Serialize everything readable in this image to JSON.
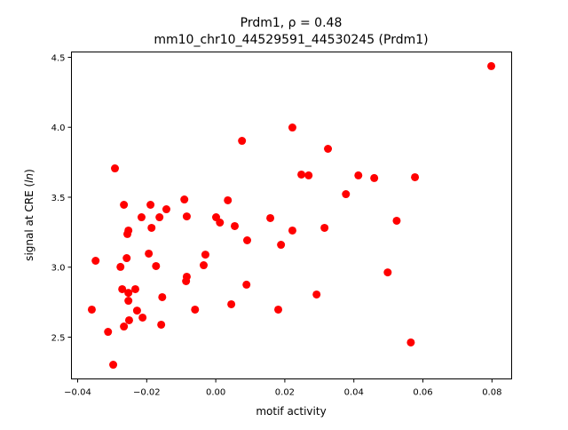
{
  "chart_data": {
    "type": "scatter",
    "title_line1": "Prdm1, ρ = 0.48",
    "title_line2": "mm10_chr10_44529591_44530245 (Prdm1)",
    "xlabel": "motif activity",
    "ylabel_prefix": "signal at CRE (",
    "ylabel_italic": "ln",
    "ylabel_suffix": ")",
    "xlim": [
      -0.0418,
      0.0857
    ],
    "ylim": [
      2.2016,
      4.538
    ],
    "xticks": [
      -0.04,
      -0.02,
      0.0,
      0.02,
      0.04,
      0.06,
      0.08
    ],
    "xtick_labels": [
      "−0.04",
      "−0.02",
      "0.00",
      "0.02",
      "0.04",
      "0.06",
      "0.08"
    ],
    "yticks": [
      2.5,
      3.0,
      3.5,
      4.0,
      4.5
    ],
    "ytick_labels": [
      "2.5",
      "3.0",
      "3.5",
      "4.0",
      "4.5"
    ],
    "grid": false,
    "marker_color": "#ff0000",
    "points": [
      [
        -0.0359,
        2.697
      ],
      [
        -0.0348,
        3.046
      ],
      [
        -0.0312,
        2.538
      ],
      [
        -0.0297,
        2.303
      ],
      [
        -0.0292,
        3.706
      ],
      [
        -0.0276,
        3.002
      ],
      [
        -0.0271,
        2.843
      ],
      [
        -0.0266,
        3.446
      ],
      [
        -0.0266,
        2.576
      ],
      [
        -0.0258,
        3.065
      ],
      [
        -0.0256,
        3.237
      ],
      [
        -0.0253,
        3.262
      ],
      [
        -0.0253,
        2.817
      ],
      [
        -0.0253,
        2.76
      ],
      [
        -0.0251,
        2.621
      ],
      [
        -0.0233,
        2.843
      ],
      [
        -0.0228,
        2.69
      ],
      [
        -0.0215,
        3.357
      ],
      [
        -0.0212,
        2.64
      ],
      [
        -0.0194,
        3.097
      ],
      [
        -0.0189,
        3.446
      ],
      [
        -0.0186,
        3.281
      ],
      [
        -0.0173,
        3.008
      ],
      [
        -0.0163,
        3.357
      ],
      [
        -0.0158,
        2.589
      ],
      [
        -0.0155,
        2.786
      ],
      [
        -0.0143,
        3.414
      ],
      [
        -0.0091,
        3.484
      ],
      [
        -0.0086,
        2.9
      ],
      [
        -0.0084,
        2.932
      ],
      [
        -0.0084,
        3.363
      ],
      [
        -0.006,
        2.697
      ],
      [
        -0.0035,
        3.014
      ],
      [
        -0.003,
        3.09
      ],
      [
        0.0001,
        3.357
      ],
      [
        0.0012,
        3.319
      ],
      [
        0.0035,
        3.478
      ],
      [
        0.0045,
        2.735
      ],
      [
        0.0055,
        3.294
      ],
      [
        0.0076,
        3.903
      ],
      [
        0.0091,
        3.192
      ],
      [
        0.0089,
        2.875
      ],
      [
        0.0158,
        3.351
      ],
      [
        0.0189,
        3.16
      ],
      [
        0.0181,
        2.697
      ],
      [
        0.0222,
        3.998
      ],
      [
        0.0222,
        3.262
      ],
      [
        0.0248,
        3.662
      ],
      [
        0.0269,
        3.656
      ],
      [
        0.0292,
        2.805
      ],
      [
        0.0315,
        3.281
      ],
      [
        0.0325,
        3.846
      ],
      [
        0.0377,
        3.522
      ],
      [
        0.0413,
        3.656
      ],
      [
        0.0459,
        3.637
      ],
      [
        0.0498,
        2.963
      ],
      [
        0.0524,
        3.332
      ],
      [
        0.0565,
        2.462
      ],
      [
        0.0577,
        3.643
      ],
      [
        0.0798,
        4.437
      ]
    ]
  }
}
